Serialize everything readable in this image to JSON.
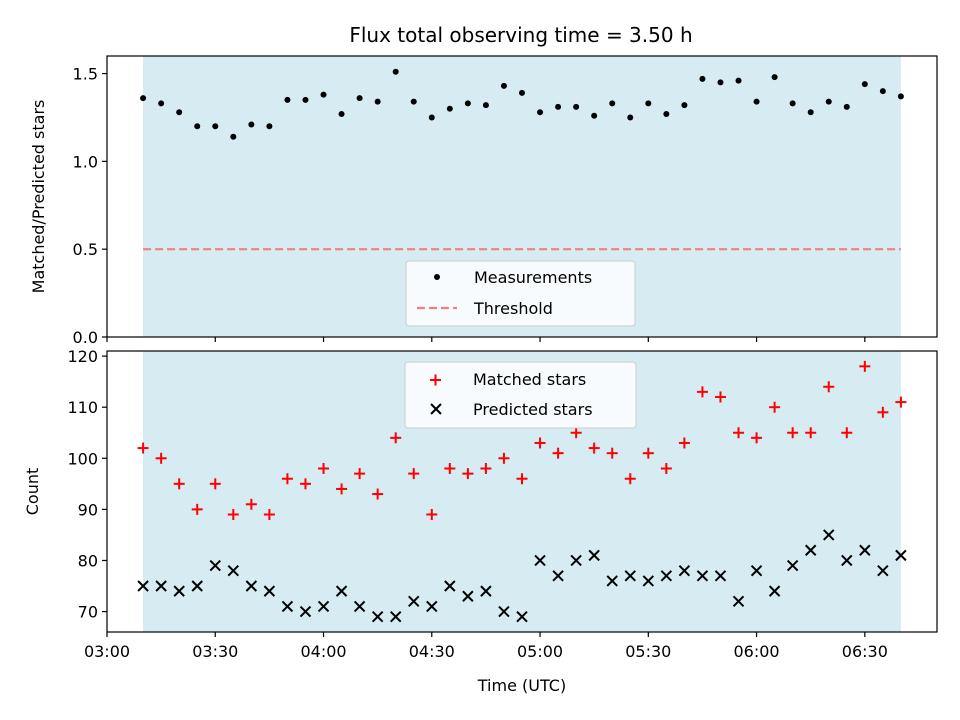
{
  "figure": {
    "title": "Flux total observing time = 3.50 h",
    "shade_color": "#add8e6",
    "threshold_color": "#f08080"
  },
  "chart_data": [
    {
      "type": "scatter",
      "title": "Flux total observing time = 3.50 h",
      "ylabel": "Matched/Predicted stars",
      "xlabel": "",
      "xlim": [
        "03:00",
        "06:50"
      ],
      "ylim": [
        0.0,
        1.6
      ],
      "yticks": [
        0.0,
        0.5,
        1.0,
        1.5
      ],
      "ytick_labels": [
        "0.0",
        "0.5",
        "1.0",
        "1.5"
      ],
      "shaded_span": [
        "03:10",
        "06:40"
      ],
      "legend_position": "lower center",
      "series": [
        {
          "name": "Measurements",
          "marker": "dot",
          "color": "#000000",
          "x": [
            "03:10",
            "03:15",
            "03:20",
            "03:25",
            "03:30",
            "03:35",
            "03:40",
            "03:45",
            "03:50",
            "03:55",
            "04:00",
            "04:05",
            "04:10",
            "04:15",
            "04:20",
            "04:25",
            "04:30",
            "04:35",
            "04:40",
            "04:45",
            "04:50",
            "04:55",
            "05:00",
            "05:05",
            "05:10",
            "05:15",
            "05:20",
            "05:25",
            "05:30",
            "05:35",
            "05:40",
            "05:45",
            "05:50",
            "05:55",
            "06:00",
            "06:05",
            "06:10",
            "06:15",
            "06:20",
            "06:25",
            "06:30",
            "06:35",
            "06:40"
          ],
          "y": [
            1.36,
            1.33,
            1.28,
            1.2,
            1.2,
            1.14,
            1.21,
            1.2,
            1.35,
            1.35,
            1.38,
            1.27,
            1.36,
            1.34,
            1.51,
            1.34,
            1.25,
            1.3,
            1.33,
            1.32,
            1.43,
            1.39,
            1.28,
            1.31,
            1.31,
            1.26,
            1.33,
            1.25,
            1.33,
            1.27,
            1.32,
            1.47,
            1.45,
            1.46,
            1.34,
            1.48,
            1.33,
            1.28,
            1.34,
            1.31,
            1.44,
            1.4,
            1.37
          ]
        },
        {
          "name": "Threshold",
          "style": "dashed",
          "color": "#f08080",
          "x": [
            "03:10",
            "06:40"
          ],
          "y": [
            0.5,
            0.5
          ]
        }
      ]
    },
    {
      "type": "scatter",
      "xlabel": "Time (UTC)",
      "ylabel": "Count",
      "xlim": [
        "03:00",
        "06:50"
      ],
      "ylim": [
        66,
        121
      ],
      "yticks": [
        70,
        80,
        90,
        100,
        110,
        120
      ],
      "xticks": [
        "03:00",
        "03:30",
        "04:00",
        "04:30",
        "05:00",
        "05:30",
        "06:00",
        "06:30"
      ],
      "shaded_span": [
        "03:10",
        "06:40"
      ],
      "legend_position": "upper center",
      "series": [
        {
          "name": "Matched stars",
          "marker": "plus",
          "color": "#ff0000",
          "x": [
            "03:10",
            "03:15",
            "03:20",
            "03:25",
            "03:30",
            "03:35",
            "03:40",
            "03:45",
            "03:50",
            "03:55",
            "04:00",
            "04:05",
            "04:10",
            "04:15",
            "04:20",
            "04:25",
            "04:30",
            "04:35",
            "04:40",
            "04:45",
            "04:50",
            "04:55",
            "05:00",
            "05:05",
            "05:10",
            "05:15",
            "05:20",
            "05:25",
            "05:30",
            "05:35",
            "05:40",
            "05:45",
            "05:50",
            "05:55",
            "06:00",
            "06:05",
            "06:10",
            "06:15",
            "06:20",
            "06:25",
            "06:30",
            "06:35",
            "06:40"
          ],
          "y": [
            102,
            100,
            95,
            90,
            95,
            89,
            91,
            89,
            96,
            95,
            98,
            94,
            97,
            93,
            104,
            97,
            89,
            98,
            97,
            98,
            100,
            96,
            103,
            101,
            105,
            102,
            101,
            96,
            101,
            98,
            103,
            113,
            112,
            105,
            104,
            110,
            105,
            105,
            114,
            105,
            118,
            109,
            111
          ]
        },
        {
          "name": "Predicted stars",
          "marker": "x",
          "color": "#000000",
          "x": [
            "03:10",
            "03:15",
            "03:20",
            "03:25",
            "03:30",
            "03:35",
            "03:40",
            "03:45",
            "03:50",
            "03:55",
            "04:00",
            "04:05",
            "04:10",
            "04:15",
            "04:20",
            "04:25",
            "04:30",
            "04:35",
            "04:40",
            "04:45",
            "04:50",
            "04:55",
            "05:00",
            "05:05",
            "05:10",
            "05:15",
            "05:20",
            "05:25",
            "05:30",
            "05:35",
            "05:40",
            "05:45",
            "05:50",
            "05:55",
            "06:00",
            "06:05",
            "06:10",
            "06:15",
            "06:20",
            "06:25",
            "06:30",
            "06:35",
            "06:40"
          ],
          "y": [
            75,
            75,
            74,
            75,
            79,
            78,
            75,
            74,
            71,
            70,
            71,
            74,
            71,
            69,
            69,
            72,
            71,
            75,
            73,
            74,
            70,
            69,
            80,
            77,
            80,
            81,
            76,
            77,
            76,
            77,
            78,
            77,
            77,
            72,
            78,
            74,
            79,
            82,
            85,
            80,
            82,
            78,
            81
          ]
        }
      ]
    }
  ]
}
